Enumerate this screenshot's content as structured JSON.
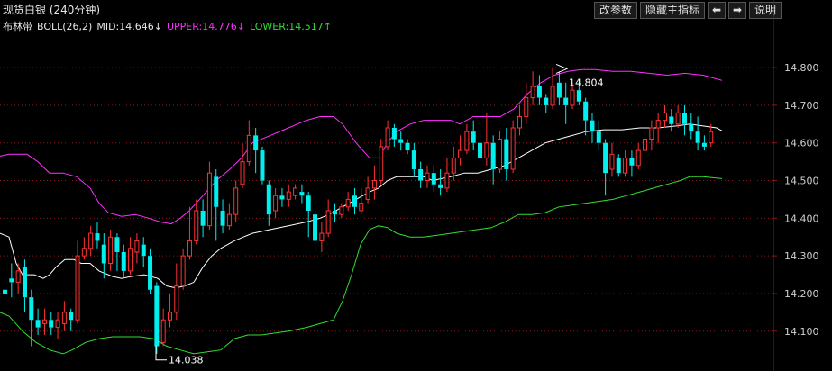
{
  "header": {
    "title": "现货白银 (240分钟)",
    "indicator_name": "布林带",
    "indicator_params": "BOLL(26,2)",
    "mid": "MID:14.646↓",
    "upper": "UPPER:14.776↓",
    "lower": "LOWER:14.517↑"
  },
  "toolbar": {
    "change_params": "改参数",
    "hide_indicator": "隐藏主指标",
    "prev_icon": "left-arrow-icon",
    "next_icon": "right-arrow-icon",
    "help": "说明"
  },
  "colors": {
    "up": "#ff3232",
    "down": "#00f0f0",
    "mid": "#ffffff",
    "upper": "#ff30ff",
    "lower": "#33dd33",
    "grid": "#8b1a1a"
  },
  "chart_data": {
    "type": "candlestick",
    "y_ticks": [
      "14.800",
      "14.700",
      "14.600",
      "14.500",
      "14.400",
      "14.300",
      "14.200",
      "14.100"
    ],
    "ylim": [
      14.025,
      14.87
    ],
    "annotations": {
      "high": "14.804",
      "low": "14.038"
    },
    "candles": [
      [
        14.21,
        14.2,
        14.23,
        14.17
      ],
      [
        14.24,
        14.23,
        14.28,
        14.19
      ],
      [
        14.23,
        14.26,
        14.28,
        14.2
      ],
      [
        14.27,
        14.19,
        14.29,
        14.15
      ],
      [
        14.19,
        14.13,
        14.21,
        14.06
      ],
      [
        14.13,
        14.11,
        14.16,
        14.09
      ],
      [
        14.12,
        14.13,
        14.16,
        14.09
      ],
      [
        14.13,
        14.11,
        14.15,
        14.09
      ],
      [
        14.11,
        14.13,
        14.15,
        14.08
      ],
      [
        14.12,
        14.15,
        14.18,
        14.1
      ],
      [
        14.15,
        14.13,
        14.16,
        14.1
      ],
      [
        14.13,
        14.3,
        14.34,
        14.12
      ],
      [
        14.3,
        14.32,
        14.35,
        14.29
      ],
      [
        14.32,
        14.36,
        14.38,
        14.3
      ],
      [
        14.36,
        14.34,
        14.39,
        14.32
      ],
      [
        14.33,
        14.28,
        14.36,
        14.24
      ],
      [
        14.28,
        14.35,
        14.37,
        14.26
      ],
      [
        14.35,
        14.31,
        14.36,
        14.26
      ],
      [
        14.31,
        14.26,
        14.33,
        14.24
      ],
      [
        14.26,
        14.32,
        14.35,
        14.25
      ],
      [
        14.31,
        14.34,
        14.36,
        14.28
      ],
      [
        14.33,
        14.3,
        14.35,
        14.27
      ],
      [
        14.3,
        14.21,
        14.32,
        14.2
      ],
      [
        14.22,
        14.06,
        14.23,
        14.04
      ],
      [
        14.07,
        14.13,
        14.16,
        14.06
      ],
      [
        14.13,
        14.15,
        14.2,
        14.11
      ],
      [
        14.15,
        14.22,
        14.28,
        14.13
      ],
      [
        14.22,
        14.3,
        14.32,
        14.21
      ],
      [
        14.3,
        14.34,
        14.43,
        14.29
      ],
      [
        14.34,
        14.42,
        14.45,
        14.33
      ],
      [
        14.42,
        14.38,
        14.45,
        14.35
      ],
      [
        14.38,
        14.52,
        14.55,
        14.37
      ],
      [
        14.51,
        14.43,
        14.53,
        14.34
      ],
      [
        14.42,
        14.38,
        14.45,
        14.36
      ],
      [
        14.38,
        14.41,
        14.44,
        14.37
      ],
      [
        14.41,
        14.48,
        14.5,
        14.39
      ],
      [
        14.49,
        14.55,
        14.6,
        14.48
      ],
      [
        14.55,
        14.62,
        14.66,
        14.54
      ],
      [
        14.62,
        14.58,
        14.64,
        14.52
      ],
      [
        14.58,
        14.5,
        14.59,
        14.49
      ],
      [
        14.49,
        14.41,
        14.5,
        14.38
      ],
      [
        14.42,
        14.46,
        14.48,
        14.4
      ],
      [
        14.46,
        14.45,
        14.48,
        14.43
      ],
      [
        14.45,
        14.47,
        14.49,
        14.43
      ],
      [
        14.46,
        14.48,
        14.49,
        14.45
      ],
      [
        14.47,
        14.46,
        14.49,
        14.44
      ],
      [
        14.46,
        14.42,
        14.47,
        14.35
      ],
      [
        14.41,
        14.34,
        14.43,
        14.31
      ],
      [
        14.34,
        14.36,
        14.39,
        14.31
      ],
      [
        14.36,
        14.42,
        14.45,
        14.35
      ],
      [
        14.42,
        14.41,
        14.44,
        14.39
      ],
      [
        14.41,
        14.43,
        14.44,
        14.4
      ],
      [
        14.43,
        14.45,
        14.47,
        14.42
      ],
      [
        14.46,
        14.43,
        14.48,
        14.41
      ],
      [
        14.42,
        14.44,
        14.48,
        14.41
      ],
      [
        14.45,
        14.48,
        14.51,
        14.44
      ],
      [
        14.48,
        14.5,
        14.54,
        14.45
      ],
      [
        14.5,
        14.59,
        14.61,
        14.49
      ],
      [
        14.59,
        14.64,
        14.66,
        14.58
      ],
      [
        14.64,
        14.61,
        14.65,
        14.59
      ],
      [
        14.61,
        14.6,
        14.63,
        14.58
      ],
      [
        14.6,
        14.58,
        14.61,
        14.57
      ],
      [
        14.58,
        14.53,
        14.6,
        14.51
      ],
      [
        14.53,
        14.5,
        14.55,
        14.48
      ],
      [
        14.5,
        14.52,
        14.54,
        14.48
      ],
      [
        14.52,
        14.49,
        14.54,
        14.47
      ],
      [
        14.49,
        14.48,
        14.53,
        14.46
      ],
      [
        14.48,
        14.52,
        14.56,
        14.47
      ],
      [
        14.52,
        14.56,
        14.59,
        14.5
      ],
      [
        14.56,
        14.58,
        14.62,
        14.54
      ],
      [
        14.58,
        14.63,
        14.65,
        14.57
      ],
      [
        14.63,
        14.6,
        14.66,
        14.58
      ],
      [
        14.6,
        14.56,
        14.63,
        14.55
      ],
      [
        14.56,
        14.6,
        14.68,
        14.54
      ],
      [
        14.6,
        14.53,
        14.62,
        14.49
      ],
      [
        14.53,
        14.61,
        14.63,
        14.52
      ],
      [
        14.61,
        14.53,
        14.64,
        14.5
      ],
      [
        14.53,
        14.64,
        14.66,
        14.52
      ],
      [
        14.64,
        14.67,
        14.7,
        14.62
      ],
      [
        14.67,
        14.72,
        14.76,
        14.65
      ],
      [
        14.72,
        14.75,
        14.79,
        14.7
      ],
      [
        14.75,
        14.72,
        14.78,
        14.7
      ],
      [
        14.72,
        14.7,
        14.73,
        14.68
      ],
      [
        14.7,
        14.75,
        14.8,
        14.69
      ],
      [
        14.76,
        14.72,
        14.79,
        14.7
      ],
      [
        14.72,
        14.7,
        14.76,
        14.65
      ],
      [
        14.7,
        14.74,
        14.76,
        14.69
      ],
      [
        14.74,
        14.71,
        14.77,
        14.7
      ],
      [
        14.71,
        14.66,
        14.72,
        14.62
      ],
      [
        14.66,
        14.63,
        14.68,
        14.6
      ],
      [
        14.63,
        14.6,
        14.66,
        14.58
      ],
      [
        14.6,
        14.52,
        14.61,
        14.46
      ],
      [
        14.53,
        14.57,
        14.6,
        14.51
      ],
      [
        14.56,
        14.52,
        14.57,
        14.51
      ],
      [
        14.52,
        14.56,
        14.58,
        14.51
      ],
      [
        14.56,
        14.54,
        14.58,
        14.51
      ],
      [
        14.54,
        14.58,
        14.6,
        14.53
      ],
      [
        14.58,
        14.61,
        14.63,
        14.55
      ],
      [
        14.61,
        14.64,
        14.66,
        14.58
      ],
      [
        14.64,
        14.66,
        14.68,
        14.6
      ],
      [
        14.66,
        14.68,
        14.7,
        14.64
      ],
      [
        14.67,
        14.65,
        14.69,
        14.63
      ],
      [
        14.65,
        14.68,
        14.7,
        14.64
      ],
      [
        14.68,
        14.65,
        14.7,
        14.62
      ],
      [
        14.65,
        14.63,
        14.68,
        14.61
      ],
      [
        14.63,
        14.6,
        14.67,
        14.58
      ],
      [
        14.6,
        14.59,
        14.62,
        14.58
      ],
      [
        14.6,
        14.63,
        14.65,
        14.59
      ]
    ],
    "mid": [
      [
        0,
        14.36
      ],
      [
        10,
        14.35
      ],
      [
        18,
        14.28
      ],
      [
        25,
        14.25
      ],
      [
        38,
        14.25
      ],
      [
        48,
        14.24
      ],
      [
        55,
        14.25
      ],
      [
        62,
        14.27
      ],
      [
        72,
        14.29
      ],
      [
        82,
        14.29
      ],
      [
        90,
        14.28
      ],
      [
        100,
        14.28
      ],
      [
        110,
        14.26
      ],
      [
        125,
        14.245
      ],
      [
        135,
        14.24
      ],
      [
        145,
        14.245
      ],
      [
        160,
        14.25
      ],
      [
        175,
        14.24
      ],
      [
        185,
        14.22
      ],
      [
        195,
        14.215
      ],
      [
        205,
        14.22
      ],
      [
        215,
        14.23
      ],
      [
        225,
        14.27
      ],
      [
        235,
        14.3
      ],
      [
        245,
        14.32
      ],
      [
        260,
        14.34
      ],
      [
        270,
        14.35
      ],
      [
        280,
        14.36
      ],
      [
        300,
        14.37
      ],
      [
        320,
        14.38
      ],
      [
        340,
        14.39
      ],
      [
        355,
        14.4
      ],
      [
        365,
        14.41
      ],
      [
        380,
        14.43
      ],
      [
        395,
        14.45
      ],
      [
        410,
        14.47
      ],
      [
        420,
        14.48
      ],
      [
        430,
        14.5
      ],
      [
        440,
        14.51
      ],
      [
        455,
        14.51
      ],
      [
        470,
        14.51
      ],
      [
        480,
        14.5
      ],
      [
        500,
        14.51
      ],
      [
        515,
        14.52
      ],
      [
        530,
        14.52
      ],
      [
        545,
        14.53
      ],
      [
        560,
        14.54
      ],
      [
        575,
        14.56
      ],
      [
        590,
        14.58
      ],
      [
        605,
        14.6
      ],
      [
        620,
        14.61
      ],
      [
        635,
        14.62
      ],
      [
        650,
        14.63
      ],
      [
        670,
        14.635
      ],
      [
        690,
        14.635
      ],
      [
        710,
        14.64
      ],
      [
        730,
        14.64
      ],
      [
        750,
        14.645
      ],
      [
        765,
        14.65
      ],
      [
        780,
        14.645
      ],
      [
        795,
        14.64
      ],
      [
        801,
        14.632
      ]
    ],
    "upper": [
      [
        0,
        14.565
      ],
      [
        10,
        14.57
      ],
      [
        30,
        14.57
      ],
      [
        42,
        14.55
      ],
      [
        55,
        14.52
      ],
      [
        70,
        14.52
      ],
      [
        85,
        14.51
      ],
      [
        100,
        14.48
      ],
      [
        110,
        14.44
      ],
      [
        120,
        14.415
      ],
      [
        135,
        14.405
      ],
      [
        150,
        14.41
      ],
      [
        165,
        14.4
      ],
      [
        178,
        14.39
      ],
      [
        190,
        14.385
      ],
      [
        200,
        14.4
      ],
      [
        210,
        14.42
      ],
      [
        225,
        14.46
      ],
      [
        240,
        14.5
      ],
      [
        255,
        14.53
      ],
      [
        268,
        14.56
      ],
      [
        280,
        14.6
      ],
      [
        300,
        14.62
      ],
      [
        320,
        14.64
      ],
      [
        340,
        14.66
      ],
      [
        355,
        14.67
      ],
      [
        370,
        14.67
      ],
      [
        380,
        14.65
      ],
      [
        395,
        14.6
      ],
      [
        410,
        14.56
      ],
      [
        420,
        14.56
      ],
      [
        430,
        14.6
      ],
      [
        440,
        14.63
      ],
      [
        455,
        14.65
      ],
      [
        470,
        14.66
      ],
      [
        485,
        14.66
      ],
      [
        500,
        14.66
      ],
      [
        510,
        14.65
      ],
      [
        525,
        14.67
      ],
      [
        540,
        14.67
      ],
      [
        555,
        14.67
      ],
      [
        570,
        14.69
      ],
      [
        585,
        14.73
      ],
      [
        600,
        14.76
      ],
      [
        615,
        14.78
      ],
      [
        630,
        14.79
      ],
      [
        645,
        14.795
      ],
      [
        660,
        14.795
      ],
      [
        680,
        14.79
      ],
      [
        700,
        14.79
      ],
      [
        720,
        14.785
      ],
      [
        740,
        14.78
      ],
      [
        760,
        14.785
      ],
      [
        780,
        14.78
      ],
      [
        801,
        14.766
      ]
    ],
    "lower": [
      [
        0,
        14.15
      ],
      [
        10,
        14.14
      ],
      [
        25,
        14.1
      ],
      [
        40,
        14.07
      ],
      [
        55,
        14.05
      ],
      [
        70,
        14.04
      ],
      [
        80,
        14.05
      ],
      [
        95,
        14.07
      ],
      [
        110,
        14.08
      ],
      [
        125,
        14.085
      ],
      [
        140,
        14.085
      ],
      [
        155,
        14.085
      ],
      [
        170,
        14.08
      ],
      [
        185,
        14.06
      ],
      [
        200,
        14.05
      ],
      [
        215,
        14.04
      ],
      [
        230,
        14.045
      ],
      [
        245,
        14.05
      ],
      [
        260,
        14.08
      ],
      [
        275,
        14.09
      ],
      [
        290,
        14.09
      ],
      [
        305,
        14.095
      ],
      [
        320,
        14.1
      ],
      [
        340,
        14.11
      ],
      [
        355,
        14.12
      ],
      [
        370,
        14.13
      ],
      [
        380,
        14.18
      ],
      [
        390,
        14.25
      ],
      [
        400,
        14.33
      ],
      [
        410,
        14.37
      ],
      [
        420,
        14.38
      ],
      [
        430,
        14.375
      ],
      [
        440,
        14.36
      ],
      [
        455,
        14.35
      ],
      [
        470,
        14.35
      ],
      [
        485,
        14.355
      ],
      [
        500,
        14.36
      ],
      [
        515,
        14.365
      ],
      [
        530,
        14.37
      ],
      [
        545,
        14.375
      ],
      [
        560,
        14.39
      ],
      [
        575,
        14.41
      ],
      [
        590,
        14.41
      ],
      [
        605,
        14.415
      ],
      [
        620,
        14.43
      ],
      [
        635,
        14.435
      ],
      [
        650,
        14.44
      ],
      [
        665,
        14.445
      ],
      [
        680,
        14.45
      ],
      [
        695,
        14.46
      ],
      [
        710,
        14.47
      ],
      [
        725,
        14.48
      ],
      [
        740,
        14.49
      ],
      [
        755,
        14.5
      ],
      [
        765,
        14.51
      ],
      [
        780,
        14.51
      ],
      [
        801,
        14.505
      ]
    ]
  }
}
